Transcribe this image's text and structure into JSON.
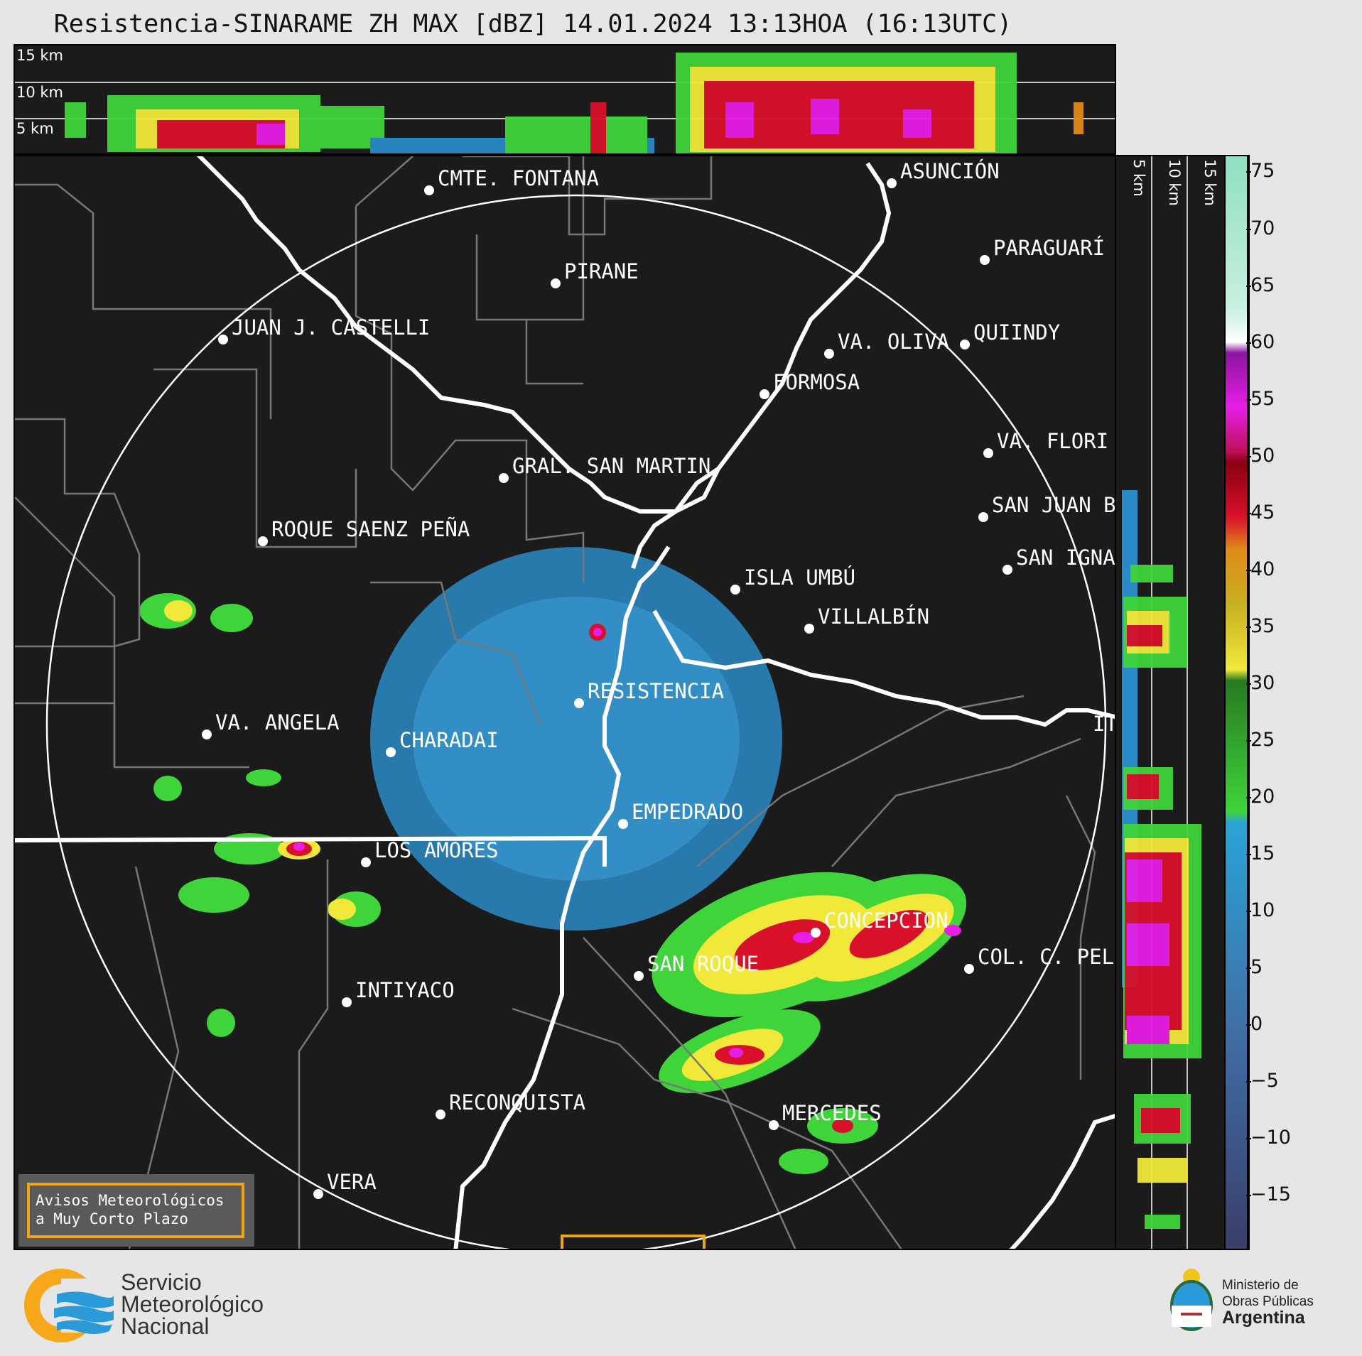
{
  "title": "Resistencia-SINARAME ZH MAX [dBZ] 14.01.2024 13:13HOA (16:13UTC)",
  "height_labels": {
    "h15": "15 km",
    "h10": "10 km",
    "h5": "5 km"
  },
  "cities": [
    {
      "name": "CMTE. FONTANA"
    },
    {
      "name": "ASUNCIÓN"
    },
    {
      "name": "PARAGUARÍ"
    },
    {
      "name": "PIRANE"
    },
    {
      "name": "JUAN J. CASTELLI"
    },
    {
      "name": "VA. OLIVA"
    },
    {
      "name": "QUIINDY"
    },
    {
      "name": "FORMOSA"
    },
    {
      "name": "VA. FLORI"
    },
    {
      "name": "GRAL. SAN MARTIN"
    },
    {
      "name": "SAN JUAN B"
    },
    {
      "name": "ROQUE SAENZ PEÑA"
    },
    {
      "name": "SAN IGNA"
    },
    {
      "name": "ISLA UMBÚ"
    },
    {
      "name": "VILLALBÍN"
    },
    {
      "name": "RESISTENCIA"
    },
    {
      "name": "VA. ANGELA"
    },
    {
      "name": "CHARADAI"
    },
    {
      "name": "IT"
    },
    {
      "name": "EMPEDRADO"
    },
    {
      "name": "LOS AMORES"
    },
    {
      "name": "CONCEPCION"
    },
    {
      "name": "SAN ROQUE"
    },
    {
      "name": "COL. C. PEL"
    },
    {
      "name": "INTIYACO"
    },
    {
      "name": "RECONQUISTA"
    },
    {
      "name": "MERCEDES"
    },
    {
      "name": "VERA"
    }
  ],
  "colorbar": {
    "ticks": [
      "75",
      "70",
      "65",
      "60",
      "55",
      "50",
      "45",
      "40",
      "35",
      "30",
      "25",
      "20",
      "15",
      "10",
      "5",
      "0",
      "−5",
      "−10",
      "−15"
    ],
    "colors": {
      "purple_dark": "#3a3e6a",
      "blue_mid": "#3f6fa6",
      "blue": "#2aa3d6",
      "green": "#3fd43a",
      "green_dark": "#267a20",
      "yellow": "#f2e83a",
      "orange": "#e08a1a",
      "red": "#d8102a",
      "red_dark": "#8a0010",
      "magenta": "#e61ee6",
      "purple": "#8c14a0",
      "white": "#ffffff",
      "mint": "#8ee0c0"
    }
  },
  "notice": {
    "line1": "Avisos Meteorológicos",
    "line2": "a Muy Corto Plazo"
  },
  "smn": {
    "line1": "Servicio",
    "line2": "Meteorológico",
    "line3": "Nacional"
  },
  "ministry": {
    "line1": "Ministerio de",
    "line2": "Obras Públicas",
    "line3": "Argentina"
  }
}
